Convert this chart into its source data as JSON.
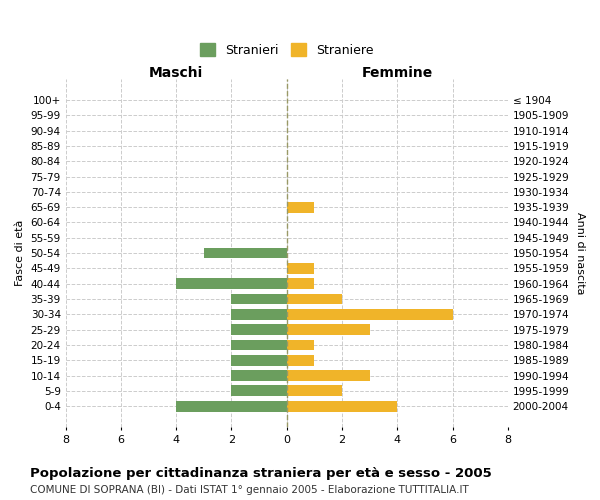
{
  "age_groups": [
    "0-4",
    "5-9",
    "10-14",
    "15-19",
    "20-24",
    "25-29",
    "30-34",
    "35-39",
    "40-44",
    "45-49",
    "50-54",
    "55-59",
    "60-64",
    "65-69",
    "70-74",
    "75-79",
    "80-84",
    "85-89",
    "90-94",
    "95-99",
    "100+"
  ],
  "birth_years": [
    "2000-2004",
    "1995-1999",
    "1990-1994",
    "1985-1989",
    "1980-1984",
    "1975-1979",
    "1970-1974",
    "1965-1969",
    "1960-1964",
    "1955-1959",
    "1950-1954",
    "1945-1949",
    "1940-1944",
    "1935-1939",
    "1930-1934",
    "1925-1929",
    "1920-1924",
    "1915-1919",
    "1910-1914",
    "1905-1909",
    "≤ 1904"
  ],
  "maschi": [
    4,
    2,
    2,
    2,
    2,
    2,
    2,
    2,
    4,
    0,
    3,
    0,
    0,
    0,
    0,
    0,
    0,
    0,
    0,
    0,
    0
  ],
  "femmine": [
    4,
    2,
    3,
    1,
    1,
    3,
    6,
    2,
    1,
    1,
    0,
    0,
    0,
    1,
    0,
    0,
    0,
    0,
    0,
    0,
    0
  ],
  "maschi_color": "#6b9e5e",
  "femmine_color": "#f0b429",
  "xlim": 8,
  "title": "Popolazione per cittadinanza straniera per età e sesso - 2005",
  "subtitle": "COMUNE DI SOPRANA (BI) - Dati ISTAT 1° gennaio 2005 - Elaborazione TUTTITALIA.IT",
  "legend_stranieri": "Stranieri",
  "legend_straniere": "Straniere",
  "maschi_label": "Maschi",
  "femmine_label": "Femmine",
  "fasce_label": "Fasce di età",
  "anni_label": "Anni di nascita",
  "background_color": "#ffffff",
  "grid_color": "#cccccc"
}
